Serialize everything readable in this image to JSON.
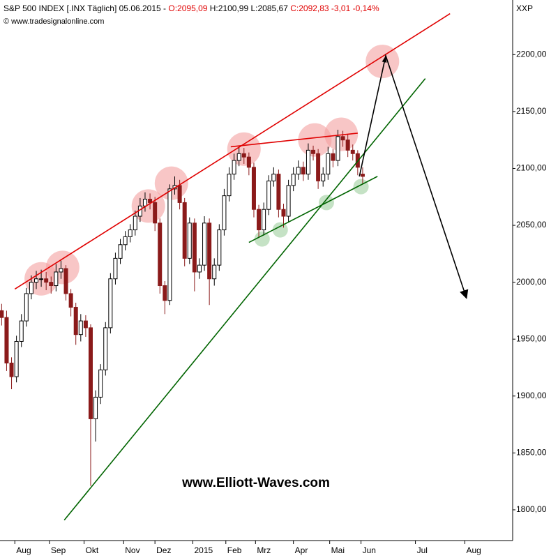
{
  "chart_data": {
    "type": "candlestick",
    "title_parts": [
      "S&P 500 INDEX [.INX  Täglich] 05.06.2015 -",
      "O:2095,09",
      "H:2100,99 L:2085,67",
      "C:2092,83 -3,01 -0,14%"
    ],
    "title_colors": [
      "#000000",
      "#e00000",
      "#000000",
      "#e00000"
    ],
    "subtitle": "© www.tradesignalonline.com",
    "axis_label": "XXP",
    "watermark": "www.Elliott-Waves.com",
    "up_color": "#ffffff",
    "down_color": "#8b1a1a",
    "x": [
      0,
      3,
      6,
      9,
      12,
      15,
      18,
      21,
      24,
      27,
      30,
      33,
      36,
      39,
      42,
      45,
      48,
      51,
      54,
      57,
      60,
      63,
      66,
      69,
      72,
      75,
      78,
      81,
      84,
      87,
      90,
      93,
      96,
      99,
      102,
      105,
      108,
      111,
      114,
      117,
      120,
      123,
      126,
      129,
      132,
      135,
      138,
      141,
      144,
      147,
      150,
      153,
      156,
      159,
      162,
      165,
      168,
      171,
      174,
      177,
      180,
      183,
      186,
      189,
      192,
      195,
      198,
      201,
      204,
      207,
      210,
      213,
      216,
      219
    ],
    "open": [
      1975,
      1969,
      1929,
      1917,
      1948,
      1966,
      1990,
      2000,
      2003,
      2003,
      2000,
      1997,
      2009,
      2012,
      1990,
      1978,
      1954,
      1966,
      1960,
      1880,
      1899,
      1923,
      1960,
      2003,
      2021,
      2033,
      2040,
      2046,
      2058,
      2067,
      2073,
      2070,
      2052,
      1997,
      1984,
      2082,
      2085,
      2070,
      2021,
      2052,
      2009,
      2015,
      2052,
      2003,
      2015,
      2046,
      2076,
      2095,
      2107,
      2113,
      2110,
      2101,
      2064,
      2046,
      2064,
      2089,
      2095,
      2064,
      2058,
      2085,
      2095,
      2101,
      2095,
      2116,
      2113,
      2089,
      2095,
      2113,
      2107,
      2128,
      2125,
      2116,
      2113,
      2095
    ],
    "high": [
      1981,
      1975,
      1934,
      1953,
      1972,
      1995,
      2006,
      2010,
      2011,
      2009,
      2005,
      2016,
      2019,
      2015,
      1994,
      1982,
      1972,
      1971,
      1963,
      1905,
      1928,
      1965,
      2008,
      2026,
      2038,
      2045,
      2051,
      2063,
      2074,
      2079,
      2078,
      2075,
      2056,
      2001,
      2086,
      2093,
      2090,
      2074,
      2057,
      2056,
      2021,
      2058,
      2056,
      2021,
      2051,
      2082,
      2101,
      2113,
      2119,
      2118,
      2114,
      2105,
      2068,
      2070,
      2094,
      2101,
      2099,
      2069,
      2090,
      2101,
      2107,
      2106,
      2122,
      2120,
      2117,
      2101,
      2119,
      2117,
      2134,
      2133,
      2130,
      2121,
      2116,
      2101
    ],
    "low": [
      1962,
      1922,
      1906,
      1912,
      1943,
      1961,
      1985,
      1994,
      1996,
      1993,
      1990,
      1992,
      2003,
      1984,
      1970,
      1945,
      1948,
      1952,
      1821,
      1860,
      1893,
      1918,
      1955,
      1998,
      2016,
      2028,
      2035,
      2041,
      2053,
      2062,
      2064,
      2045,
      1990,
      1972,
      1980,
      2077,
      2064,
      2014,
      2016,
      1992,
      2003,
      2010,
      1980,
      1997,
      2010,
      2041,
      2071,
      2090,
      2102,
      2104,
      2094,
      2057,
      2039,
      2041,
      2059,
      2084,
      2057,
      2048,
      2053,
      2080,
      2090,
      2089,
      2090,
      2107,
      2082,
      2084,
      2090,
      2101,
      2102,
      2119,
      2110,
      2107,
      2094,
      2086
    ],
    "close": [
      1969,
      1929,
      1917,
      1948,
      1966,
      1990,
      2000,
      2003,
      2003,
      2000,
      1997,
      2009,
      2012,
      1990,
      1978,
      1954,
      1966,
      1960,
      1880,
      1899,
      1923,
      1960,
      2003,
      2021,
      2033,
      2040,
      2046,
      2058,
      2067,
      2073,
      2070,
      2052,
      1997,
      1984,
      2082,
      2085,
      2070,
      2021,
      2052,
      2009,
      2015,
      2052,
      2003,
      2015,
      2046,
      2076,
      2095,
      2107,
      2113,
      2110,
      2101,
      2064,
      2046,
      2064,
      2089,
      2095,
      2064,
      2058,
      2085,
      2095,
      2101,
      2095,
      2116,
      2113,
      2089,
      2095,
      2113,
      2107,
      2128,
      2125,
      2116,
      2113,
      2101,
      2093
    ],
    "xlim": [
      -1,
      310
    ],
    "ylim": [
      1773,
      2248
    ],
    "yticks": [
      {
        "value": 1800,
        "label": "1800,00"
      },
      {
        "value": 1850,
        "label": "1850,00"
      },
      {
        "value": 1900,
        "label": "1900,00"
      },
      {
        "value": 1950,
        "label": "1950,00"
      },
      {
        "value": 2000,
        "label": "2000,00"
      },
      {
        "value": 2050,
        "label": "2050,00"
      },
      {
        "value": 2100,
        "label": "2100,00"
      },
      {
        "value": 2150,
        "label": "2150,00"
      },
      {
        "value": 2200,
        "label": "2200,00"
      }
    ],
    "xticks": [
      {
        "value": 8,
        "label": "Aug"
      },
      {
        "value": 29,
        "label": "Sep"
      },
      {
        "value": 50,
        "label": "Okt"
      },
      {
        "value": 74,
        "label": "Nov"
      },
      {
        "value": 93,
        "label": "Dez"
      },
      {
        "value": 116,
        "label": "2015"
      },
      {
        "value": 136,
        "label": "Feb"
      },
      {
        "value": 154,
        "label": "Mrz"
      },
      {
        "value": 177,
        "label": "Apr"
      },
      {
        "value": 199,
        "label": "Mai"
      },
      {
        "value": 218,
        "label": "Jun"
      },
      {
        "value": 251,
        "label": "Jul"
      },
      {
        "value": 281,
        "label": "Aug"
      }
    ],
    "lines": [
      {
        "color": "#e00000",
        "x": [
          8,
          272
        ],
        "y": [
          1994,
          2236
        ]
      },
      {
        "color": "#e00000",
        "x": [
          139,
          216
        ],
        "y": [
          2119,
          2131
        ]
      },
      {
        "color": "#006400",
        "x": [
          38,
          257
        ],
        "y": [
          1791,
          2179
        ]
      },
      {
        "color": "#006400",
        "x": [
          150,
          228
        ],
        "y": [
          2035,
          2093
        ]
      },
      {
        "color": "#000000",
        "x": [
          217,
          233,
          282
        ],
        "y": [
          2093,
          2199,
          1986
        ]
      }
    ],
    "tops": {
      "color": "#f4a0a0",
      "x": [
        24,
        37,
        89,
        103,
        147,
        190,
        206,
        231
      ],
      "y": [
        2003,
        2013,
        2067,
        2087,
        2117,
        2125,
        2130,
        2194
      ]
    },
    "bottoms": {
      "color": "#9fcf9f",
      "x": [
        158,
        169,
        197,
        218
      ],
      "y": [
        2038,
        2046,
        2070,
        2084
      ]
    }
  }
}
